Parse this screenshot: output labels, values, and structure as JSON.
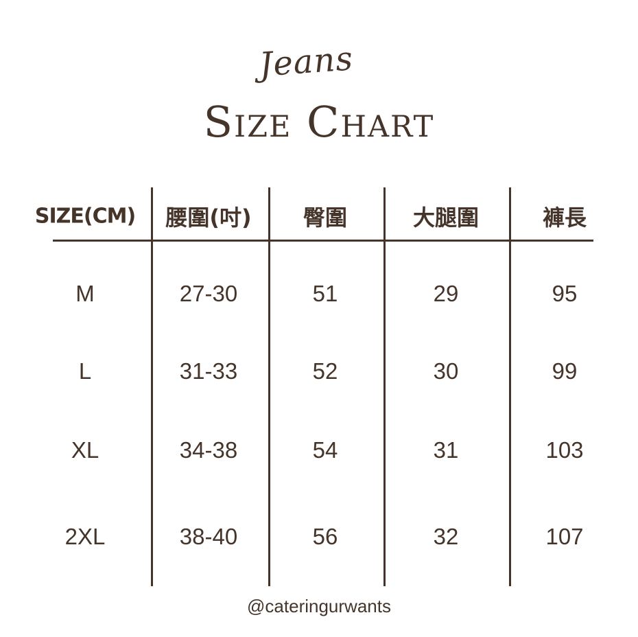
{
  "title": {
    "script": "Jeans",
    "main": "Size Chart"
  },
  "table": {
    "headers": [
      "SIZE(CM)",
      "腰圍(吋)",
      "臀圍",
      "大腿圍",
      "褲長"
    ],
    "rows": [
      [
        "M",
        "27-30",
        "51",
        "29",
        "95"
      ],
      [
        "L",
        "31-33",
        "52",
        "30",
        "99"
      ],
      [
        "XL",
        "34-38",
        "54",
        "31",
        "103"
      ],
      [
        "2XL",
        "38-40",
        "56",
        "32",
        "107"
      ]
    ]
  },
  "footer": {
    "handle": "@cateringurwants"
  },
  "colors": {
    "text": "#45342a",
    "background": "#ffffff"
  }
}
